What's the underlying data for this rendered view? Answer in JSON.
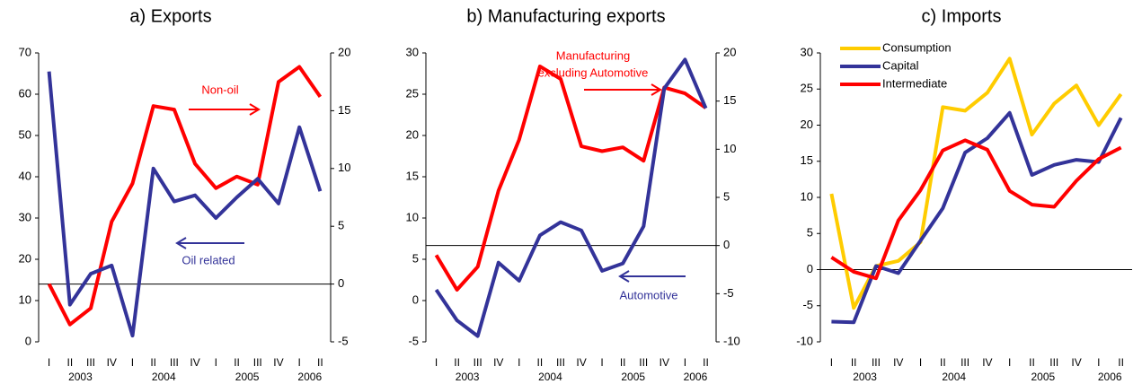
{
  "chart_data": [
    {
      "type": "line",
      "title": "a) Exports",
      "categories": [
        "I",
        "II",
        "III",
        "IV",
        "I",
        "II",
        "III",
        "IV",
        "I",
        "II",
        "III",
        "IV",
        "I",
        "II"
      ],
      "group_labels": [
        "2003",
        "2004",
        "2005",
        "2006"
      ],
      "ylim": [
        0,
        70
      ],
      "yticks": [
        0,
        10,
        20,
        30,
        40,
        50,
        60,
        70
      ],
      "y2lim": [
        -5,
        20
      ],
      "y2ticks": [
        -5,
        0,
        5,
        10,
        15,
        20
      ],
      "zero_line": "y2",
      "series": [
        {
          "name": "Non-oil",
          "color": "#ff0000",
          "axis": "y2",
          "values": [
            0,
            -3.5,
            -2.1,
            5.4,
            8.7,
            15.4,
            15.1,
            10.4,
            8.3,
            9.3,
            8.6,
            17.5,
            18.8,
            16.2
          ]
        },
        {
          "name": "Oil related",
          "color": "#333399",
          "values": [
            65.5,
            9,
            16.5,
            18.5,
            1.5,
            42,
            34,
            35.5,
            30,
            35,
            39.5,
            33.5,
            52,
            36.5
          ]
        }
      ],
      "annotations": [
        {
          "lines": [
            "Non-oil"
          ],
          "color": "#ff0000",
          "arrow": "right"
        },
        {
          "lines": [
            "Oil related"
          ],
          "color": "#333399",
          "arrow": "left"
        }
      ]
    },
    {
      "type": "line",
      "title": "b) Manufacturing exports",
      "categories": [
        "I",
        "II",
        "III",
        "IV",
        "I",
        "II",
        "III",
        "IV",
        "I",
        "II",
        "III",
        "IV",
        "I",
        "II"
      ],
      "group_labels": [
        "2003",
        "2004",
        "2005",
        "2006"
      ],
      "ylim": [
        -5,
        30
      ],
      "yticks": [
        -5,
        0,
        5,
        10,
        15,
        20,
        25,
        30
      ],
      "y2lim": [
        -10,
        20
      ],
      "y2ticks": [
        -10,
        -5,
        0,
        5,
        10,
        15,
        20
      ],
      "zero_line": "y2",
      "series": [
        {
          "name": "Manufacturing excluding Automotive",
          "color": "#ff0000",
          "axis": "y2",
          "values": [
            -1.0,
            -4.6,
            -2.2,
            5.7,
            11.0,
            18.6,
            17.3,
            10.3,
            9.8,
            10.2,
            8.8,
            16.4,
            15.8,
            14.3
          ]
        },
        {
          "name": "Automotive",
          "color": "#333399",
          "values": [
            1.3,
            -2.4,
            -4.3,
            4.6,
            2.4,
            7.9,
            9.5,
            8.5,
            3.6,
            4.5,
            9.0,
            25.7,
            29.2,
            23.3
          ]
        }
      ],
      "annotations": [
        {
          "lines": [
            "Manufacturing",
            "excluding Automotive"
          ],
          "color": "#ff0000",
          "arrow": "right"
        },
        {
          "lines": [
            "Automotive"
          ],
          "color": "#333399",
          "arrow": "left"
        }
      ]
    },
    {
      "type": "line",
      "title": "c) Imports",
      "categories": [
        "I",
        "II",
        "III",
        "IV",
        "I",
        "II",
        "III",
        "IV",
        "I",
        "II",
        "III",
        "IV",
        "I",
        "II"
      ],
      "group_labels": [
        "2003",
        "2004",
        "2005",
        "2006"
      ],
      "ylim": [
        -10,
        30
      ],
      "yticks": [
        -10,
        -5,
        0,
        5,
        10,
        15,
        20,
        25,
        30
      ],
      "zero_line": "y",
      "legend": "upper left",
      "series": [
        {
          "name": "Consumption",
          "color": "#ffcc00",
          "values": [
            10.5,
            -5.3,
            0.5,
            1.2,
            3.8,
            22.5,
            22,
            24.5,
            29.2,
            18.7,
            23,
            25.5,
            20,
            24.3
          ]
        },
        {
          "name": "Capital",
          "color": "#333399",
          "values": [
            -7.2,
            -7.3,
            0.5,
            -0.5,
            4,
            8.5,
            16.2,
            18.2,
            21.7,
            13.1,
            14.5,
            15.2,
            14.9,
            21
          ]
        },
        {
          "name": "Intermediate",
          "color": "#ff0000",
          "values": [
            1.7,
            -0.3,
            -1.2,
            6.8,
            11,
            16.5,
            17.9,
            16.6,
            10.9,
            9,
            8.7,
            12.3,
            15.3,
            16.9
          ]
        }
      ]
    }
  ]
}
